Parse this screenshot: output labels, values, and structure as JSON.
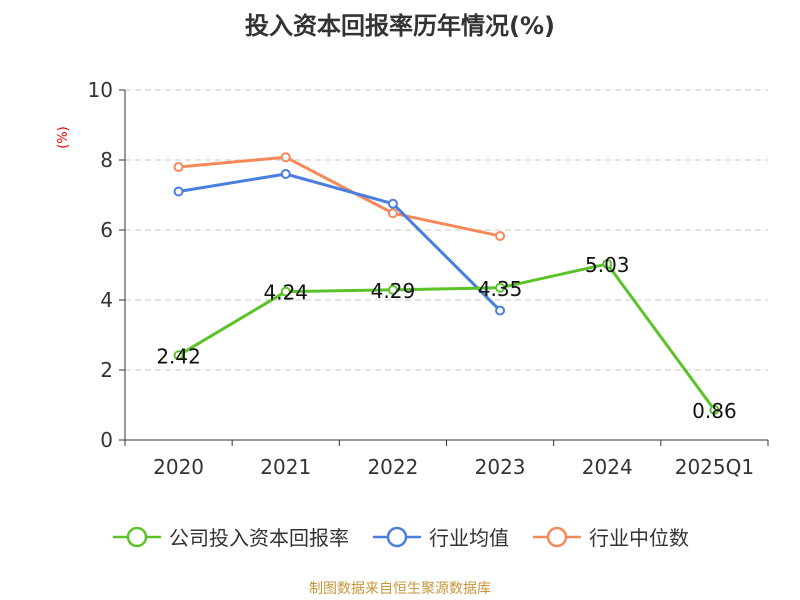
{
  "chart_data": {
    "type": "line",
    "title": "投入资本回报率历年情况(%)",
    "ylabel": "(%)",
    "xlabel": "",
    "categories": [
      "2020",
      "2021",
      "2022",
      "2023",
      "2024",
      "2025Q1"
    ],
    "ylim": [
      0,
      10
    ],
    "yticks": [
      0,
      2,
      4,
      6,
      8,
      10
    ],
    "grid": "horizontal-dashed",
    "legend_position": "bottom",
    "series": [
      {
        "name": "公司投入资本回报率",
        "color": "#5cc229",
        "values": [
          2.42,
          4.24,
          4.29,
          4.35,
          5.03,
          0.86
        ],
        "labels": [
          "2.42",
          "4.24",
          "4.29",
          "4.35",
          "5.03",
          "0.86"
        ],
        "show_labels": true
      },
      {
        "name": "行业均值",
        "color": "#4a7fdf",
        "values": [
          7.1,
          7.6,
          6.75,
          3.7,
          null,
          null
        ],
        "show_labels": false
      },
      {
        "name": "行业中位数",
        "color": "#f5895a",
        "values": [
          7.8,
          8.08,
          6.48,
          5.83,
          null,
          null
        ],
        "show_labels": false
      }
    ],
    "source": "制图数据来自恒生聚源数据库"
  }
}
